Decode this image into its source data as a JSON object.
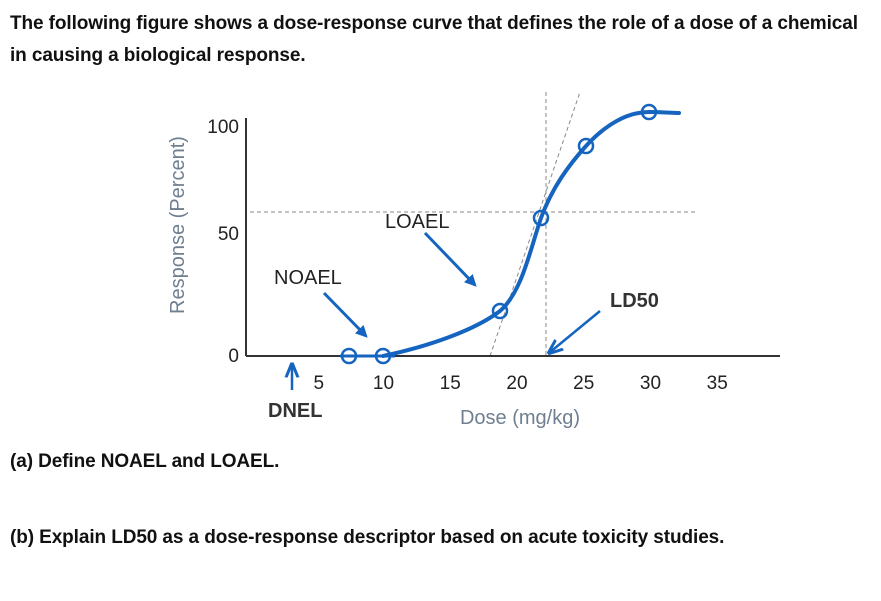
{
  "question": {
    "intro": "The following figure shows a dose-response curve that defines the role of a dose of a chemical in causing a biological response.",
    "part_a": "(a) Define NOAEL and LOAEL.",
    "part_b": "(b) Explain LD50 as a dose-response descriptor based on acute toxicity studies."
  },
  "colors": {
    "curve": "#1565c0",
    "axis": "#333333",
    "guide": "#888888",
    "axis_title": "#6f7f8f"
  },
  "chart_data": {
    "type": "line",
    "title": "",
    "xlabel": "Dose (mg/kg)",
    "ylabel": "Response (Percent)",
    "xlim": [
      0,
      38
    ],
    "ylim": [
      0,
      100
    ],
    "x_ticks": [
      5,
      10,
      15,
      20,
      25,
      30,
      35
    ],
    "x_tick_labels": [
      "5",
      "10",
      "15",
      "20",
      "25",
      "30",
      "35"
    ],
    "y_ticks": [
      0,
      50,
      100
    ],
    "y_tick_labels": [
      "0",
      "50",
      "100"
    ],
    "grid": false,
    "series": [
      {
        "name": "Dose-response curve",
        "points": [
          {
            "x": 7.5,
            "y": 0
          },
          {
            "x": 10,
            "y": 0
          },
          {
            "x": 19,
            "y": 16
          },
          {
            "x": 22.3,
            "y": 48
          },
          {
            "x": 25.7,
            "y": 73
          },
          {
            "x": 30.5,
            "y": 85
          }
        ],
        "curve_end": {
          "x": 32.5,
          "y": 85
        }
      }
    ],
    "guides": {
      "horizontal_50pct_y": 50,
      "ld50_dose": 22.3,
      "tangent_intercept_dose": 18.3
    },
    "annotations": [
      {
        "label": "NOAEL",
        "points_to_dose": 10,
        "bold": false
      },
      {
        "label": "LOAEL",
        "points_to_dose": 19,
        "bold": false
      },
      {
        "label": "LD50",
        "points_to_dose": 22.3,
        "bold": true
      },
      {
        "label": "DNEL",
        "points_to_dose": 3.2,
        "bold": true
      }
    ]
  }
}
